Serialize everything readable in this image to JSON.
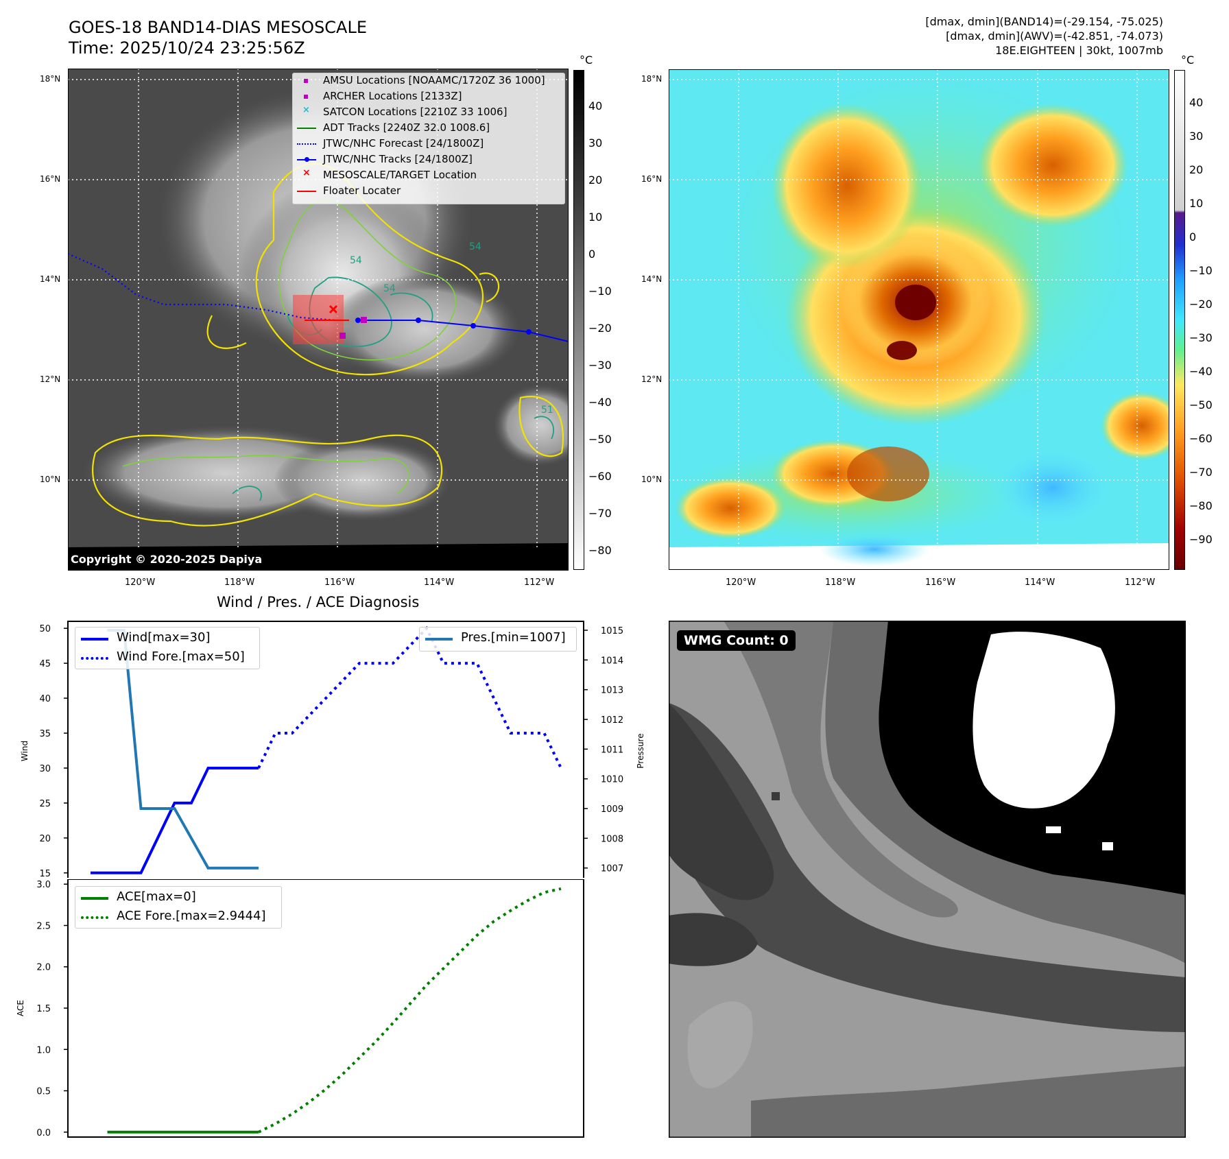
{
  "header": {
    "title_line1": "GOES-18 BAND14-DIAS MESOSCALE",
    "title_line2": "Time: 2025/10/24 23:25:56Z",
    "info_line1": "[dmax, dmin](BAND14)=(-29.154, -75.025)",
    "info_line2": "[dmax, dmin](AWV)=(-42.851, -74.073)",
    "info_line3": "18E.EIGHTEEN | 30kt, 1007mb"
  },
  "map": {
    "lat_labels": [
      "18°N",
      "16°N",
      "14°N",
      "12°N",
      "10°N"
    ],
    "lon_labels": [
      "120°W",
      "118°W",
      "116°W",
      "114°W",
      "112°W"
    ],
    "copyright": "Copyright © 2020-2025 Dapiya",
    "contour_labels": [
      "54",
      "54",
      "54",
      "51"
    ],
    "legend": [
      {
        "label": "AMSU Locations [NOAAMC/1720Z 36 1000]",
        "color": "#c000c0"
      },
      {
        "label": "ARCHER Locations [2133Z]",
        "color": "#c000c0"
      },
      {
        "label": "SATCON Locations [2210Z 33 1006]",
        "color": "#17becf"
      },
      {
        "label": "ADT Tracks [2240Z 32.0 1008.6]",
        "color": "#008000"
      },
      {
        "label": "JTWC/NHC Forecast [24/1800Z]",
        "color": "#0000ff"
      },
      {
        "label": "JTWC/NHC Tracks [24/1800Z]",
        "color": "#0000ff"
      },
      {
        "label": "MESOSCALE/TARGET Location",
        "color": "#ff0000"
      },
      {
        "label": "Floater Locater",
        "color": "#ff0000"
      }
    ]
  },
  "colorbars": {
    "unit": "°C",
    "left_ticks": [
      "40",
      "30",
      "20",
      "10",
      "0",
      "−10",
      "−20",
      "−30",
      "−40",
      "−50",
      "−60",
      "−70",
      "−80"
    ],
    "right_ticks": [
      "40",
      "30",
      "20",
      "10",
      "0",
      "−10",
      "−20",
      "−30",
      "−40",
      "−50",
      "−60",
      "−70",
      "−80",
      "−90"
    ]
  },
  "chart_data": [
    {
      "type": "line",
      "title": "Wind / Pres. / ACE Diagnosis",
      "ylabel": "Wind",
      "ylabel2": "Pressure",
      "ylim": [
        14,
        51
      ],
      "ylim2": [
        1006.6,
        1015.3
      ],
      "yticks": [
        15,
        20,
        25,
        30,
        35,
        40,
        45,
        50
      ],
      "yticks2": [
        1007,
        1008,
        1009,
        1010,
        1011,
        1012,
        1013,
        1014,
        1015
      ],
      "x": [
        0,
        1,
        2,
        3,
        4,
        5,
        6,
        7,
        8,
        9,
        10,
        11,
        12,
        13,
        14,
        15,
        16,
        17,
        18,
        19,
        20,
        21,
        22,
        23,
        24,
        25,
        26,
        27,
        28
      ],
      "series": [
        {
          "name": "Wind[max=30]",
          "axis": "left",
          "style": "solid",
          "color": "#0000ff",
          "x": [
            0,
            1,
            2,
            3,
            4,
            5,
            6,
            7,
            8,
            9,
            10
          ],
          "values": [
            15,
            15,
            15,
            15,
            20,
            25,
            25,
            30,
            30,
            30,
            30
          ]
        },
        {
          "name": "Wind Fore.[max=50]",
          "axis": "left",
          "style": "dotted",
          "color": "#0000ff",
          "x": [
            10,
            11,
            12,
            13,
            14,
            15,
            16,
            17,
            18,
            19,
            20,
            21,
            22,
            23,
            24,
            25,
            26,
            27,
            28
          ],
          "values": [
            30,
            35,
            35,
            37.5,
            40,
            42.5,
            45,
            45,
            45,
            47.5,
            50,
            45,
            45,
            45,
            40,
            35,
            35,
            35,
            30
          ]
        },
        {
          "name": "Pres.[min=1007]",
          "axis": "right",
          "style": "solid",
          "color": "#1f77b4",
          "x": [
            1,
            2,
            3,
            4,
            5,
            6,
            7,
            8,
            9,
            10
          ],
          "values": [
            1015,
            1015,
            1009,
            1009,
            1009,
            1008,
            1007,
            1007,
            1007,
            1007
          ]
        }
      ]
    },
    {
      "type": "line",
      "ylabel": "ACE",
      "ylim": [
        -0.06,
        3.06
      ],
      "yticks": [
        "0.0",
        "0.5",
        "1.0",
        "1.5",
        "2.0",
        "2.5",
        "3.0"
      ],
      "series": [
        {
          "name": "ACE[max=0]",
          "style": "solid",
          "color": "#008000",
          "x": [
            1,
            2,
            3,
            4,
            5,
            6,
            7,
            8,
            9,
            10
          ],
          "values": [
            0,
            0,
            0,
            0,
            0,
            0,
            0,
            0,
            0,
            0
          ]
        },
        {
          "name": "ACE Fore.[max=2.9444]",
          "style": "dotted",
          "color": "#008000",
          "x": [
            10,
            11,
            12,
            13,
            14,
            15,
            16,
            17,
            18,
            19,
            20,
            21,
            22,
            23,
            24,
            25,
            26,
            27,
            28
          ],
          "values": [
            0,
            0.1,
            0.22,
            0.36,
            0.52,
            0.7,
            0.9,
            1.1,
            1.32,
            1.55,
            1.78,
            1.98,
            2.18,
            2.38,
            2.55,
            2.68,
            2.8,
            2.9,
            2.9444
          ]
        }
      ]
    }
  ],
  "wmg": {
    "count_label": "WMG Count: 0"
  }
}
